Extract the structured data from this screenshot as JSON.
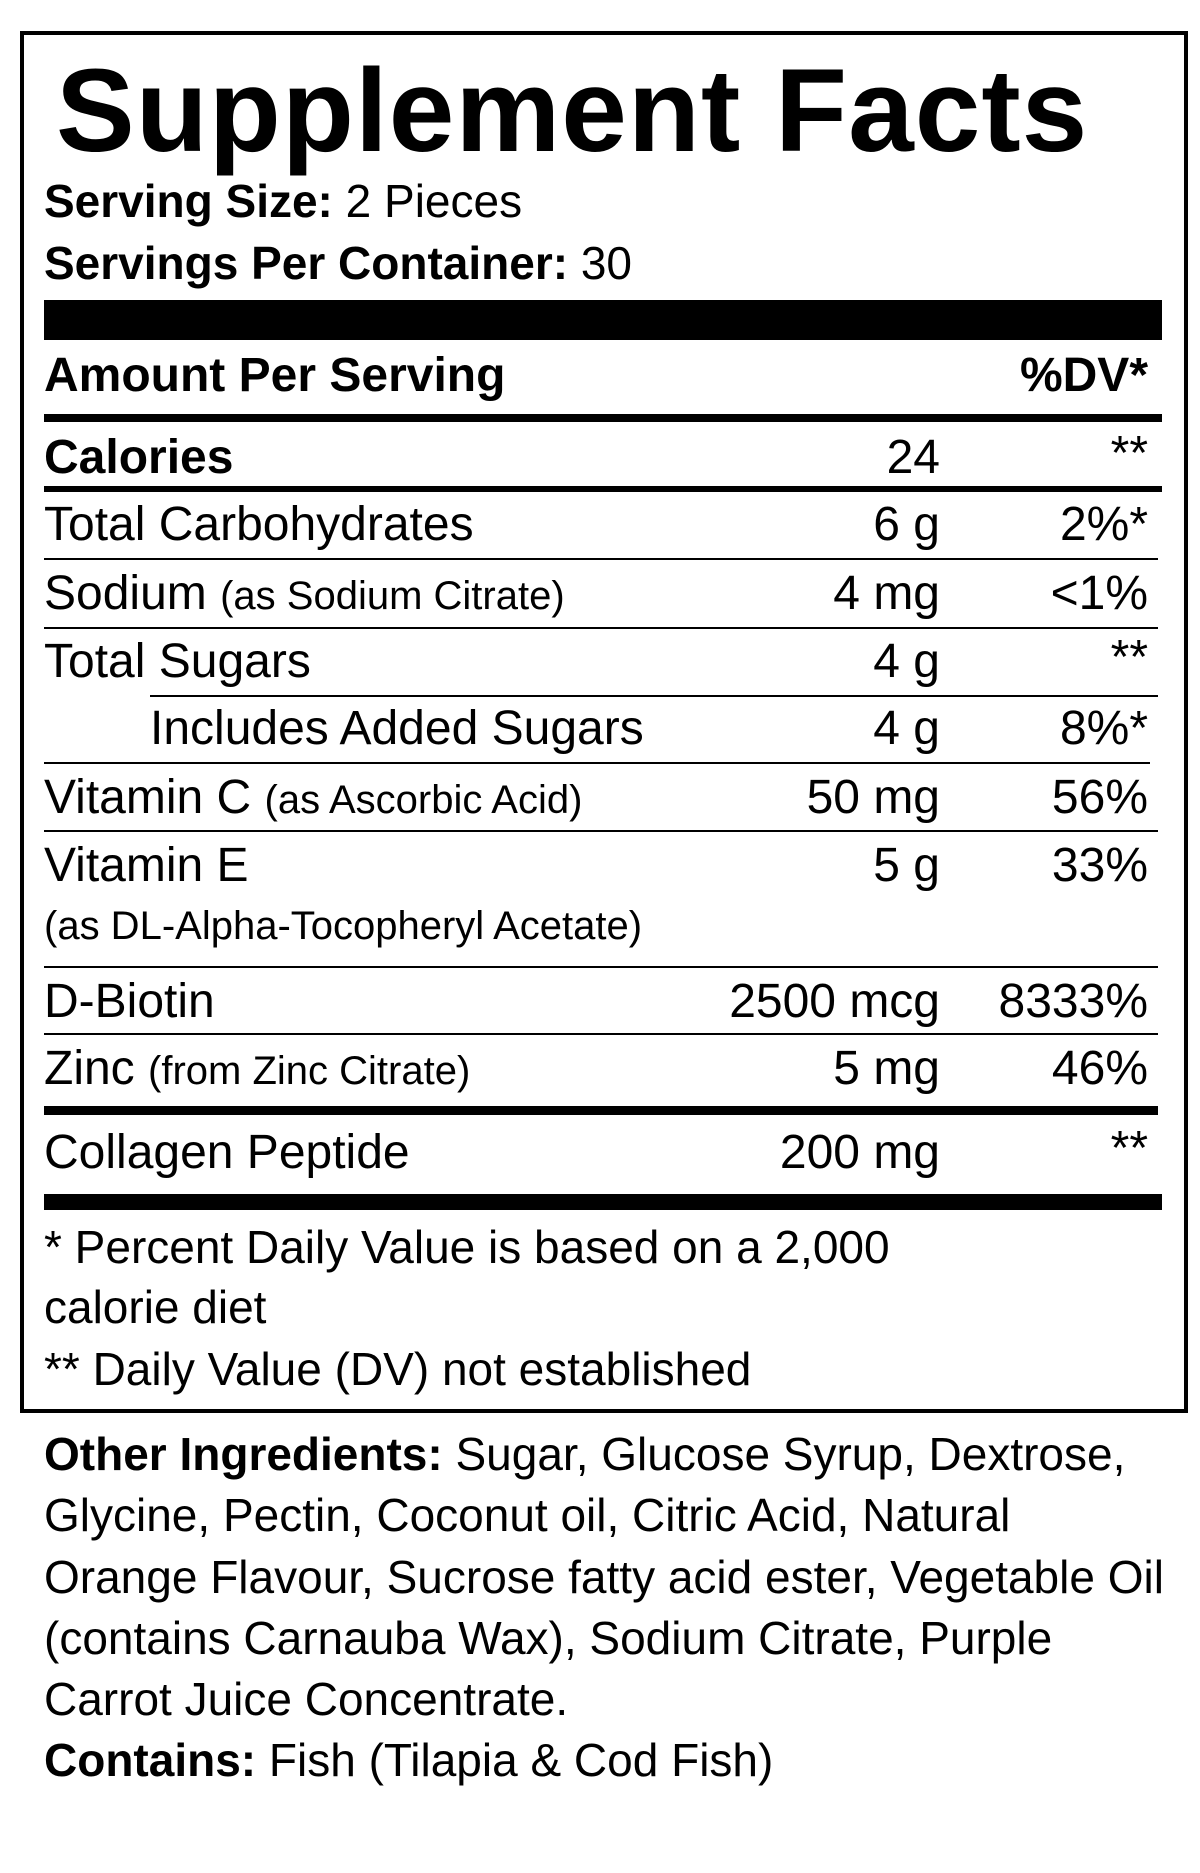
{
  "title": "Supplement Facts",
  "serving_size": {
    "label": "Serving Size:",
    "value": "2 Pieces"
  },
  "servings_per_container": {
    "label": "Servings Per Container:",
    "value": "30"
  },
  "header": {
    "amount_label": "Amount Per Serving",
    "dv_label": "%DV*"
  },
  "rows": [
    {
      "name": "Calories",
      "note": "",
      "amount": "24",
      "dv": "**"
    },
    {
      "name": "Total Carbohydrates",
      "note": "",
      "amount": "6 g",
      "dv": "2%*"
    },
    {
      "name": "Sodium",
      "note": "(as Sodium Citrate)",
      "amount": "4 mg",
      "dv": "<1%"
    },
    {
      "name": "Total Sugars",
      "note": "",
      "amount": "4 g",
      "dv": "**"
    },
    {
      "name": "Includes Added Sugars",
      "note": "",
      "amount": "4 g",
      "dv": "8%*"
    },
    {
      "name": "Vitamin C",
      "note": "(as Ascorbic Acid)",
      "amount": "50 mg",
      "dv": "56%"
    },
    {
      "name": "Vitamin E",
      "note": "(as DL-Alpha-Tocopheryl Acetate)",
      "amount": "5 g",
      "dv": "33%"
    },
    {
      "name": "D-Biotin",
      "note": "",
      "amount": "2500 mcg",
      "dv": "8333%"
    },
    {
      "name": "Zinc",
      "note": "(from Zinc Citrate)",
      "amount": "5 mg",
      "dv": "46%"
    },
    {
      "name": "Collagen Peptide",
      "note": "",
      "amount": "200 mg",
      "dv": "**"
    }
  ],
  "footnotes": {
    "line1": "* Percent Daily Value is based on a 2,000",
    "line2": "calorie diet",
    "line3": "** Daily Value (DV) not established"
  },
  "other_ingredients": {
    "label": "Other Ingredients:",
    "text": "Sugar, Glucose Syrup, Dextrose, Glycine, Pectin, Coconut oil, Citric Acid, Natural Orange Flavour, Sucrose fatty acid ester, Vegetable Oil (contains Carnauba Wax), Sodium Citrate, Purple Carrot Juice Concentrate."
  },
  "contains": {
    "label": "Contains:",
    "text": "Fish (Tilapia & Cod Fish)"
  }
}
